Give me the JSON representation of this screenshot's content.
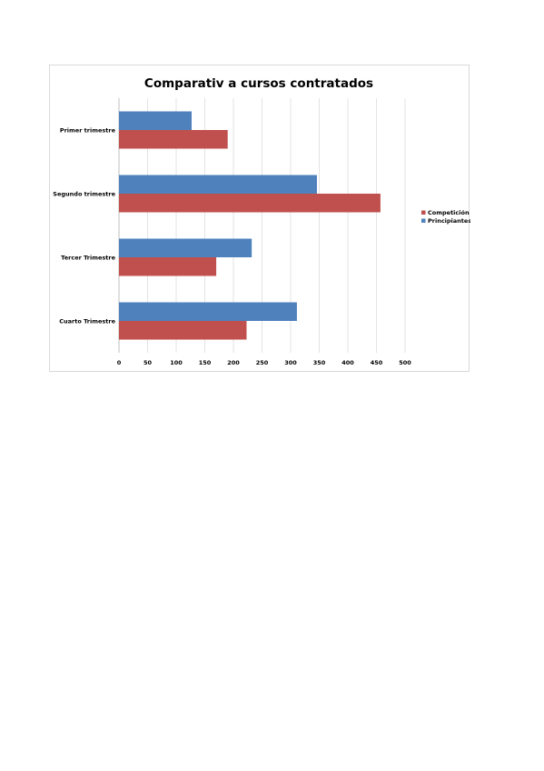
{
  "chart_data": {
    "type": "bar",
    "orientation": "horizontal",
    "title": "Comparativ a cursos contratados",
    "categories": [
      "Primer trimestre",
      "Segundo trimestre",
      "Tercer Trimestre",
      "Cuarto Trimestre"
    ],
    "series": [
      {
        "name": "Competición",
        "values": [
          190,
          457,
          170,
          223
        ],
        "color": "#c0504d"
      },
      {
        "name": "Principiantes",
        "values": [
          127,
          346,
          232,
          311
        ],
        "color": "#4f81bd"
      }
    ],
    "xlim": [
      0,
      500
    ],
    "x_ticks": [
      "0",
      "50",
      "100",
      "150",
      "200",
      "250",
      "300",
      "350",
      "400",
      "450",
      "500"
    ],
    "grid": "vertical",
    "legend_position": "right"
  }
}
